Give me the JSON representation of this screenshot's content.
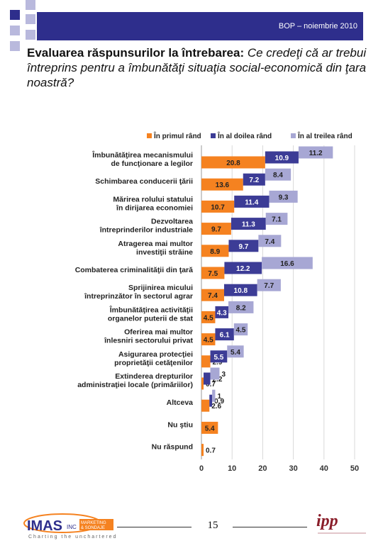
{
  "header": {
    "text": "BOP – noiembrie 2010"
  },
  "title": {
    "bold": "Evaluarea răspunsurilor la întrebarea:",
    "italic": " Ce credeţi că ar trebui întreprins pentru a îmbunătăţi situaţia social-economică din ţara noastră?"
  },
  "colors": {
    "s1": "#f58220",
    "s2": "#3c3c96",
    "s3": "#a7a7d4",
    "header": "#2e2e8c"
  },
  "chart_data": {
    "type": "bar",
    "orientation": "horizontal",
    "categories": [
      "Îmbunătăţirea mecanismului de funcţionare a legilor",
      "Schimbarea conducerii ţării",
      "Mărirea rolului statului în dirijarea economiei",
      "Dezvoltarea întreprinderilor industriale",
      "Atragerea mai multor investiţii străine",
      "Combaterea criminalităţii din ţară",
      "Sprijinirea micului întreprinzător în sectorul agrar",
      "Îmbunătăţirea activităţii organelor puterii de stat",
      "Oferirea mai multor înlesniri sectorului privat",
      "Asigurarea protecţiei proprietăţii cetăţenilor",
      "Extinderea drepturilor administraţiei locale (primăriilor)",
      "Altceva",
      "Nu ştiu",
      "Nu răspund"
    ],
    "series": [
      {
        "name": "În primul rând",
        "values": [
          20.8,
          13.6,
          10.7,
          9.7,
          8.9,
          7.5,
          7.4,
          4.5,
          4.5,
          2.9,
          0.7,
          2.6,
          5.4,
          0.7
        ]
      },
      {
        "name": "În al doilea rând",
        "values": [
          10.9,
          7.2,
          11.4,
          11.3,
          9.7,
          12.2,
          10.8,
          4.3,
          6.1,
          5.5,
          2.2,
          0.9,
          null,
          null
        ]
      },
      {
        "name": "În al treilea rând",
        "values": [
          11.2,
          8.4,
          9.3,
          7.1,
          7.4,
          16.6,
          7.7,
          8.2,
          4.5,
          5.4,
          3.0,
          1.0,
          null,
          null
        ]
      }
    ],
    "xlim": [
      0,
      50
    ],
    "xticks": [
      0,
      10,
      20,
      30,
      40,
      50
    ],
    "legend_position": "top",
    "grid": true
  },
  "footer": {
    "page": "15"
  }
}
